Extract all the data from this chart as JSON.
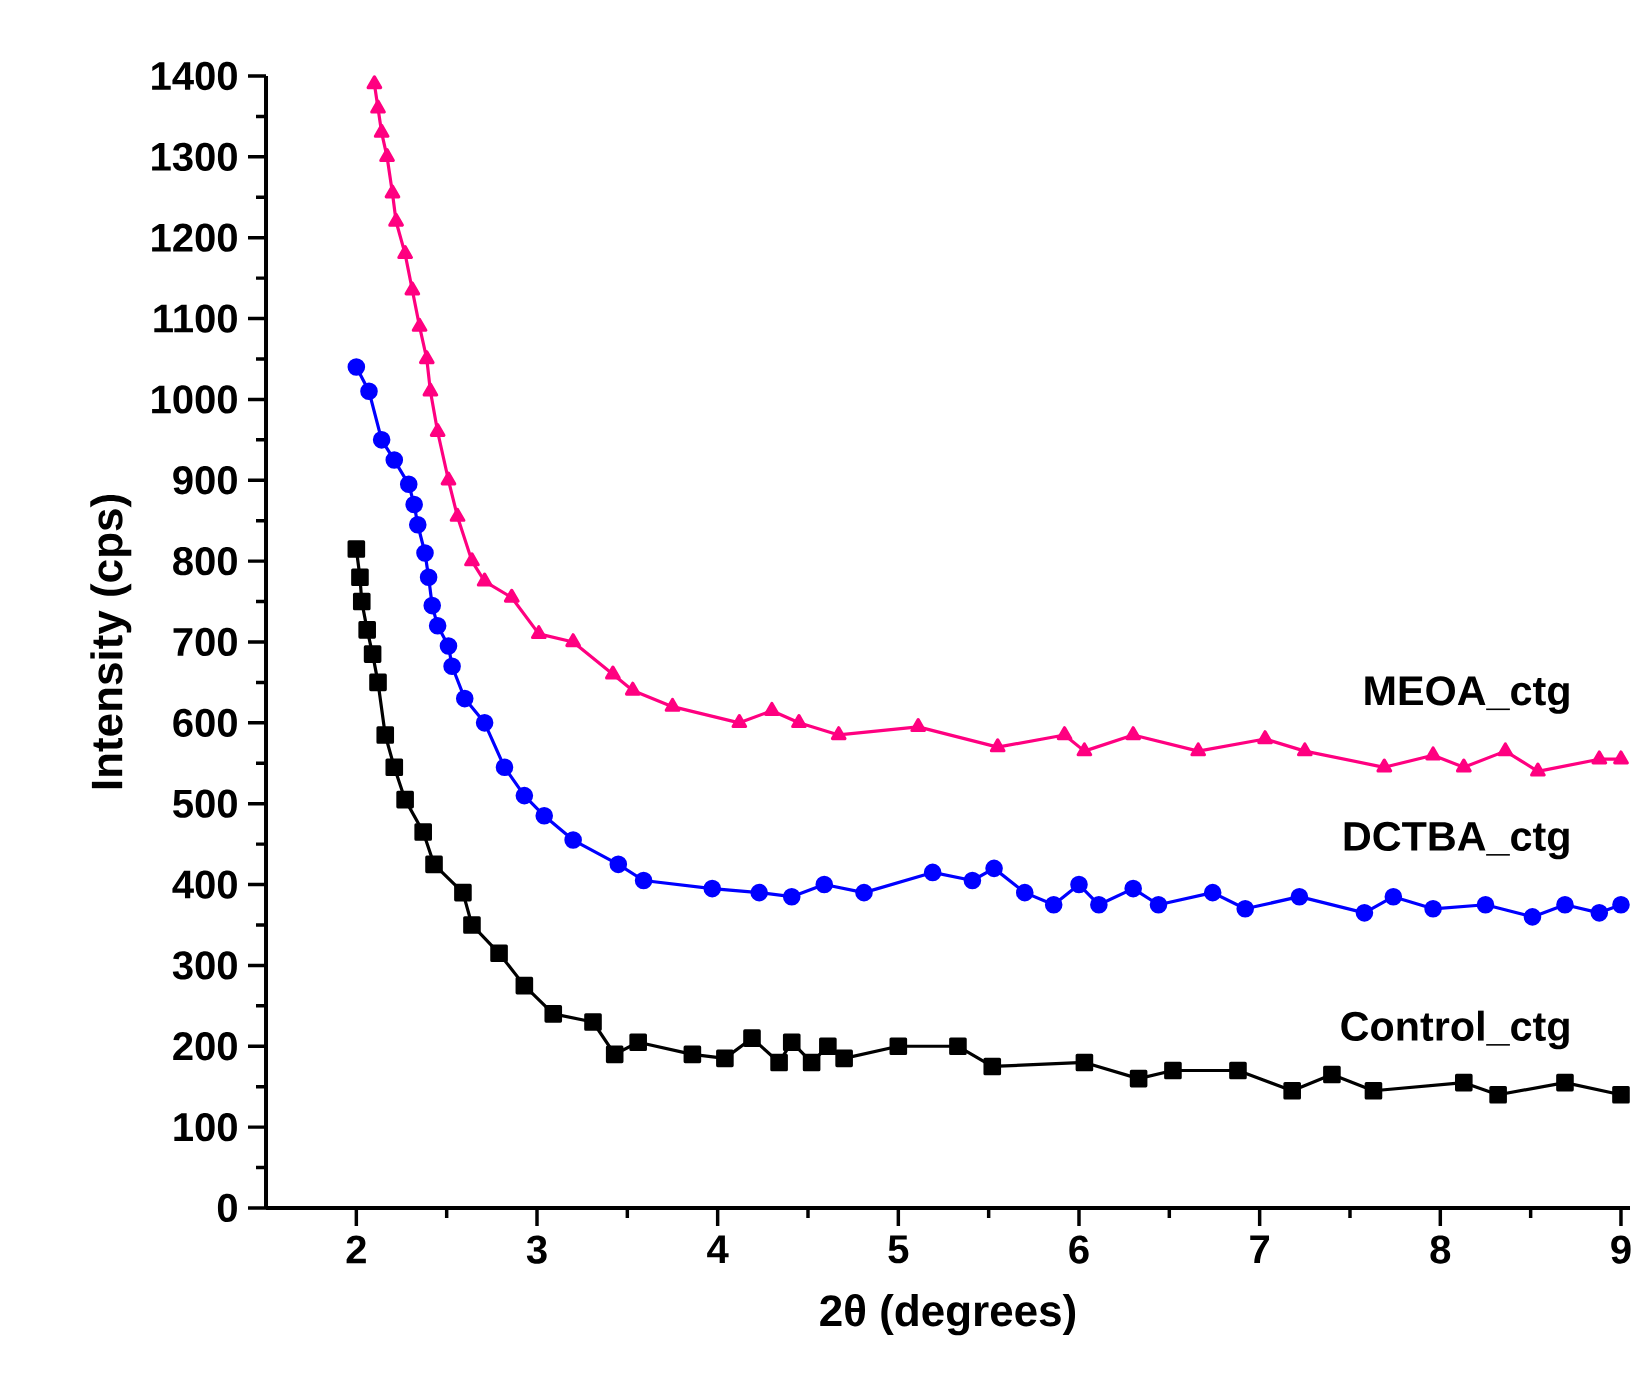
{
  "chart_data": {
    "type": "line",
    "xlabel": "2θ (degrees)",
    "ylabel": "Intensity (cps)",
    "xlim": [
      1.5,
      9.05
    ],
    "ylim": [
      0,
      1400
    ],
    "xticks": [
      2,
      3,
      4,
      5,
      6,
      7,
      8,
      9
    ],
    "yticks": [
      0,
      100,
      200,
      300,
      400,
      500,
      600,
      700,
      800,
      900,
      1000,
      1100,
      1200,
      1300,
      1400
    ],
    "grid": false,
    "legend": false,
    "line_style": "solid",
    "series": [
      {
        "name": "MEOA_ctg",
        "color": "#ff0080",
        "marker": "triangle",
        "x": [
          2.1,
          2.12,
          2.14,
          2.17,
          2.2,
          2.22,
          2.27,
          2.31,
          2.35,
          2.39,
          2.41,
          2.45,
          2.51,
          2.56,
          2.64,
          2.71,
          2.86,
          3.01,
          3.2,
          3.42,
          3.53,
          3.75,
          4.12,
          4.3,
          4.45,
          4.67,
          5.11,
          5.55,
          5.92,
          6.03,
          6.3,
          6.66,
          7.03,
          7.25,
          7.69,
          7.96,
          8.13,
          8.36,
          8.54,
          8.88,
          9.0
        ],
        "values": [
          1390,
          1360,
          1330,
          1300,
          1255,
          1220,
          1180,
          1135,
          1090,
          1050,
          1010,
          960,
          900,
          855,
          800,
          775,
          755,
          710,
          700,
          660,
          640,
          620,
          600,
          615,
          600,
          585,
          595,
          570,
          585,
          565,
          585,
          565,
          580,
          565,
          545,
          560,
          545,
          565,
          540,
          555,
          555
        ]
      },
      {
        "name": "DCTBA_ctg",
        "color": "#0000ff",
        "marker": "circle",
        "x": [
          2.0,
          2.07,
          2.14,
          2.21,
          2.29,
          2.32,
          2.34,
          2.38,
          2.4,
          2.42,
          2.45,
          2.51,
          2.53,
          2.6,
          2.71,
          2.82,
          2.93,
          3.04,
          3.2,
          3.45,
          3.59,
          3.97,
          4.23,
          4.41,
          4.59,
          4.81,
          5.19,
          5.41,
          5.53,
          5.7,
          5.86,
          6.0,
          6.11,
          6.3,
          6.44,
          6.74,
          6.92,
          7.22,
          7.58,
          7.74,
          7.96,
          8.25,
          8.51,
          8.69,
          8.88,
          9.0
        ],
        "values": [
          1040,
          1010,
          950,
          925,
          895,
          870,
          845,
          810,
          780,
          745,
          720,
          695,
          670,
          630,
          600,
          545,
          510,
          485,
          455,
          425,
          405,
          395,
          390,
          385,
          400,
          390,
          415,
          405,
          420,
          390,
          375,
          400,
          375,
          395,
          375,
          390,
          370,
          385,
          365,
          385,
          370,
          375,
          360,
          375,
          365,
          375
        ]
      },
      {
        "name": "Control_ctg",
        "color": "#000000",
        "marker": "square",
        "x": [
          2.0,
          2.02,
          2.03,
          2.06,
          2.09,
          2.12,
          2.16,
          2.21,
          2.27,
          2.37,
          2.43,
          2.59,
          2.64,
          2.79,
          2.93,
          3.09,
          3.31,
          3.43,
          3.56,
          3.86,
          4.04,
          4.19,
          4.34,
          4.41,
          4.52,
          4.61,
          4.7,
          5.0,
          5.33,
          5.52,
          6.03,
          6.33,
          6.52,
          6.88,
          7.18,
          7.4,
          7.63,
          8.13,
          8.32,
          8.69,
          9.0
        ],
        "values": [
          815,
          780,
          750,
          715,
          685,
          650,
          585,
          545,
          505,
          465,
          425,
          390,
          350,
          315,
          275,
          240,
          230,
          190,
          205,
          190,
          185,
          210,
          180,
          205,
          180,
          200,
          185,
          200,
          200,
          175,
          180,
          160,
          170,
          170,
          145,
          165,
          145,
          155,
          140,
          155,
          140
        ]
      }
    ]
  }
}
